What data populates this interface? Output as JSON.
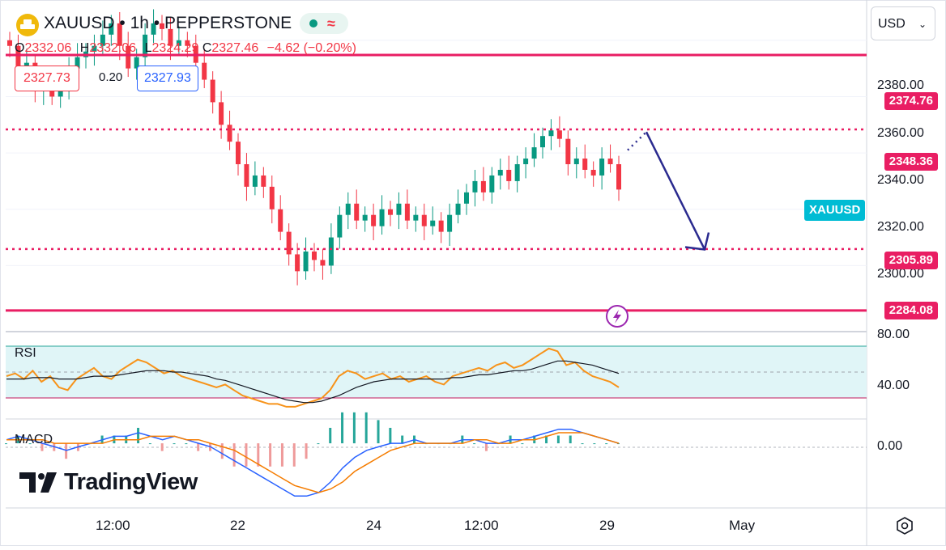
{
  "header": {
    "symbol": "XAUUSD",
    "interval": "1h",
    "exchange": "PEPPERSTONE",
    "title_sep": " • ",
    "ohlc": {
      "o_label": "O",
      "o": "2332.06",
      "h_label": "H",
      "h": "2332.06",
      "l_label": "L",
      "l": "2324.29",
      "c_label": "C",
      "c": "2327.46",
      "change": "−4.62 (−0.20%)"
    },
    "bid": "2327.73",
    "spread": "0.20",
    "ask": "2327.93",
    "status_icons": [
      "market-open-dot-icon",
      "approx-icon"
    ]
  },
  "currency_select": "USD",
  "symbol_tag": "XAUUSD",
  "brand": "TradingView",
  "price_axis": [
    "2380.00",
    "2360.00",
    "2340.00",
    "2320.00",
    "2300.00"
  ],
  "rsi_axis": [
    "80.00",
    "40.00"
  ],
  "macd_axis": [
    "0.00"
  ],
  "time_axis": [
    "12:00",
    "22",
    "24",
    "12:00",
    "29",
    "May"
  ],
  "levels": [
    {
      "price": "2374.76",
      "style": "solid"
    },
    {
      "price": "2348.36",
      "style": "dotted"
    },
    {
      "price": "2305.89",
      "style": "dotted"
    },
    {
      "price": "2284.08",
      "style": "solid"
    }
  ],
  "colors": {
    "up": "#089981",
    "down": "#f23645",
    "level": "#e91e63",
    "arrow": "#2a2a8f",
    "rsi": "#f7931a",
    "rsi_ma": "#131722",
    "macd": "#2962ff",
    "signal": "#f57c00",
    "symbol_tag": "#00bcd4"
  },
  "chart_data": [
    {
      "type": "candlestick",
      "title": "XAUUSD • 1h • PEPPERSTONE",
      "x_ticks": [
        "12:00",
        "22",
        "24",
        "12:00",
        "29",
        "May"
      ],
      "y_ticks": [
        2380,
        2360,
        2340,
        2320,
        2300
      ],
      "ylim": [
        2278,
        2392
      ],
      "close_path_approx": [
        2378,
        2368,
        2372,
        2362,
        2366,
        2360,
        2364,
        2370,
        2374,
        2376,
        2378,
        2382,
        2386,
        2378,
        2370,
        2374,
        2382,
        2386,
        2384,
        2378,
        2380,
        2378,
        2372,
        2366,
        2358,
        2350,
        2344,
        2336,
        2328,
        2332,
        2328,
        2320,
        2312,
        2304,
        2298,
        2305,
        2302,
        2300,
        2310,
        2318,
        2322,
        2316,
        2318,
        2314,
        2320,
        2318,
        2322,
        2316,
        2318,
        2314,
        2316,
        2312,
        2318,
        2322,
        2326,
        2330,
        2326,
        2332,
        2334,
        2330,
        2336,
        2338,
        2342,
        2346,
        2348,
        2345,
        2336,
        2338,
        2334,
        2332,
        2338,
        2336,
        2327
      ],
      "levels": [
        2374.76,
        2348.36,
        2305.89,
        2284.08
      ],
      "projection": {
        "from": 2348,
        "to": 2306,
        "direction": "down"
      }
    },
    {
      "type": "line",
      "name_label": "RSI",
      "y_ticks": [
        80,
        40
      ],
      "ylim": [
        27,
        83
      ],
      "band": [
        30,
        70
      ],
      "series": [
        {
          "values": [
            52,
            54,
            50,
            56,
            48,
            52,
            44,
            42,
            50,
            54,
            58,
            52,
            50,
            56,
            60,
            64,
            62,
            58,
            54,
            56,
            52,
            50,
            48,
            46,
            44,
            46,
            42,
            38,
            36,
            34,
            32,
            32,
            30,
            30,
            32,
            34,
            36,
            42,
            52,
            56,
            54,
            50,
            52,
            54,
            50,
            52,
            48,
            50,
            52,
            48,
            46,
            52,
            54,
            56,
            58,
            56,
            60,
            62,
            58,
            60,
            64,
            68,
            72,
            70,
            60,
            62,
            56,
            52,
            50,
            48,
            44
          ]
        },
        {
          "values": [
            50,
            50,
            50,
            51,
            51,
            51,
            50,
            50,
            50,
            51,
            52,
            52,
            52,
            53,
            54,
            55,
            56,
            56,
            56,
            55,
            55,
            54,
            53,
            52,
            50,
            49,
            47,
            45,
            43,
            41,
            39,
            37,
            35,
            34,
            33,
            33,
            34,
            36,
            38,
            41,
            44,
            46,
            48,
            49,
            50,
            50,
            50,
            50,
            50,
            50,
            50,
            51,
            51,
            52,
            53,
            53,
            54,
            55,
            56,
            56,
            57,
            59,
            61,
            63,
            63,
            62,
            61,
            60,
            58,
            56,
            54
          ]
        }
      ]
    },
    {
      "type": "line",
      "name_label": "MACD",
      "y_ticks": [
        0
      ],
      "ylim": [
        -17,
        6
      ],
      "series": [
        {
          "values": [
            1,
            2,
            1,
            0,
            -1,
            -2,
            -1,
            0,
            1,
            2,
            2,
            3,
            2,
            1,
            2,
            1,
            0,
            -1,
            -3,
            -5,
            -7,
            -9,
            -11,
            -13,
            -15,
            -15,
            -14,
            -11,
            -7,
            -4,
            -2,
            -1,
            0,
            0,
            1,
            0,
            0,
            0,
            1,
            1,
            0,
            0,
            1,
            1,
            2,
            3,
            4,
            4,
            3,
            2,
            1,
            0
          ]
        },
        {
          "values": [
            1,
            1,
            1,
            1,
            0,
            0,
            0,
            0,
            0,
            1,
            1,
            1,
            2,
            2,
            2,
            1,
            1,
            0,
            -1,
            -2,
            -4,
            -6,
            -8,
            -10,
            -12,
            -13,
            -14,
            -13,
            -11,
            -8,
            -6,
            -4,
            -2,
            -1,
            0,
            0,
            0,
            0,
            0,
            1,
            1,
            0,
            0,
            1,
            1,
            2,
            3,
            3,
            3,
            2,
            1,
            0
          ]
        }
      ]
    }
  ]
}
